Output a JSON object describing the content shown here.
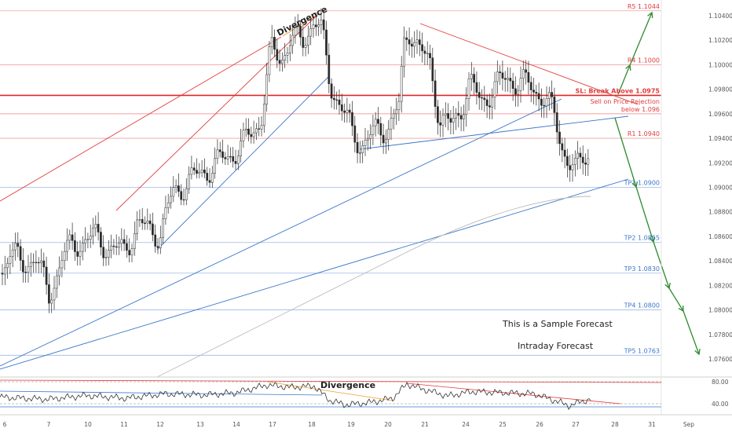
{
  "chart_data": {
    "type": "candlestick",
    "instrument_hint": "EURUSD",
    "y_axis": {
      "ticks": [
        "1.10400",
        "1.10200",
        "1.10000",
        "1.09800",
        "1.09600",
        "1.09400",
        "1.09200",
        "1.09000",
        "1.08800",
        "1.08600",
        "1.08400",
        "1.08200",
        "1.08000",
        "1.07800",
        "1.07600"
      ],
      "ylim": [
        1.0745,
        1.1045
      ]
    },
    "x_axis": {
      "ticks": [
        "6",
        "7",
        "10",
        "11",
        "12",
        "13",
        "14",
        "17",
        "18",
        "19",
        "20",
        "21",
        "24",
        "25",
        "26",
        "27",
        "28",
        "31",
        "Sep"
      ]
    },
    "levels": [
      {
        "label": "R5 1.1044",
        "value": 1.1044,
        "color": "#f2a0a0"
      },
      {
        "label": "R4 1.1000",
        "value": 1.1,
        "color": "#f2a0a0"
      },
      {
        "label": "SL: Break Above 1.0975",
        "value": 1.0975,
        "color": "#e32626"
      },
      {
        "label": "below 1.096",
        "value": 1.096,
        "color": "#f08080"
      },
      {
        "label": "R1 1.0940",
        "value": 1.094,
        "color": "#f2a0a0"
      },
      {
        "label": "TP1 1.0900",
        "value": 1.09,
        "color": "#9db8e8"
      },
      {
        "label": "TP2 1.0855",
        "value": 1.0855,
        "color": "#9db8e8"
      },
      {
        "label": "TP3 1.0830",
        "value": 1.083,
        "color": "#9db8e8"
      },
      {
        "label": "TP4 1.0800",
        "value": 1.08,
        "color": "#9db8e8"
      },
      {
        "label": "TP5 1.0763",
        "value": 1.0763,
        "color": "#9db8e8"
      }
    ],
    "extra_label": "Sell on Price Rejection",
    "annotations": {
      "divergence_price": "Divergence",
      "divergence_rsi": "Divergence",
      "sample_note": "This is a Sample Forecast",
      "forecast_type": "Intraday Forecast"
    },
    "rsi": {
      "ticks": [
        "80.00",
        "40.00"
      ]
    },
    "colors": {
      "up": "#2a2a2a",
      "down": "#2a2a2a",
      "resistance": "#e23b3b",
      "support": "#3b77c9",
      "forecast_arrow": "#2e8b2e",
      "ma": "#bbbbbb"
    }
  }
}
